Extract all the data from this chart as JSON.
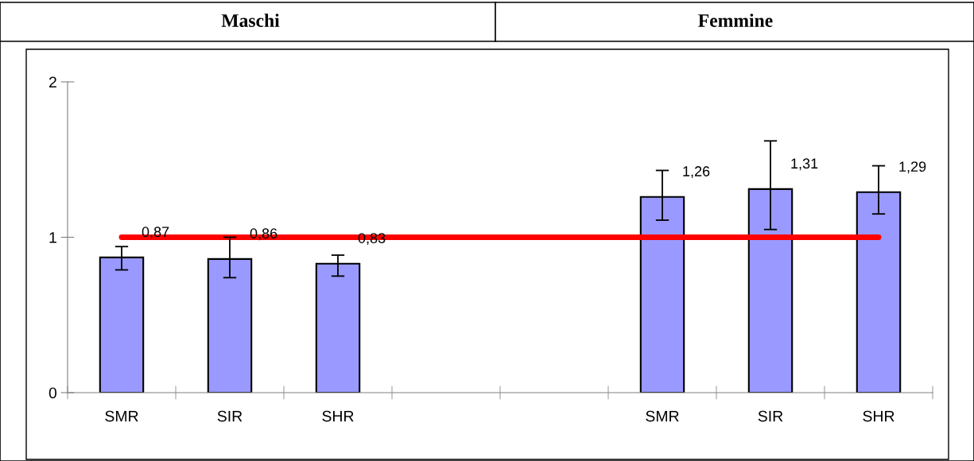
{
  "chart_data": {
    "type": "bar",
    "annotations": [
      "Maschi",
      "Femmine"
    ],
    "categories": [
      "SMR",
      "SIR",
      "SHR",
      null,
      null,
      "SMR",
      "SIR",
      "SHR"
    ],
    "series": [
      {
        "color": "#9999ff",
        "values": [
          0.87,
          0.86,
          0.83,
          null,
          null,
          1.26,
          1.31,
          1.29
        ],
        "errors": [
          [
            0.79,
            0.94
          ],
          [
            0.74,
            1.0
          ],
          [
            0.75,
            0.885
          ],
          null,
          null,
          [
            1.11,
            1.43
          ],
          [
            1.05,
            1.62
          ],
          [
            1.15,
            1.46
          ]
        ],
        "value_labels": [
          "0,87",
          "0,86",
          "0,83",
          null,
          null,
          "1,26",
          "1,31",
          "1,29"
        ]
      },
      {
        "type": "line",
        "color": "#ff0000",
        "values": [
          1,
          1,
          1,
          1,
          1,
          1,
          1,
          1
        ]
      }
    ],
    "ylim": [
      0,
      2
    ],
    "yticks": [
      0,
      1,
      2
    ],
    "grid": false
  }
}
